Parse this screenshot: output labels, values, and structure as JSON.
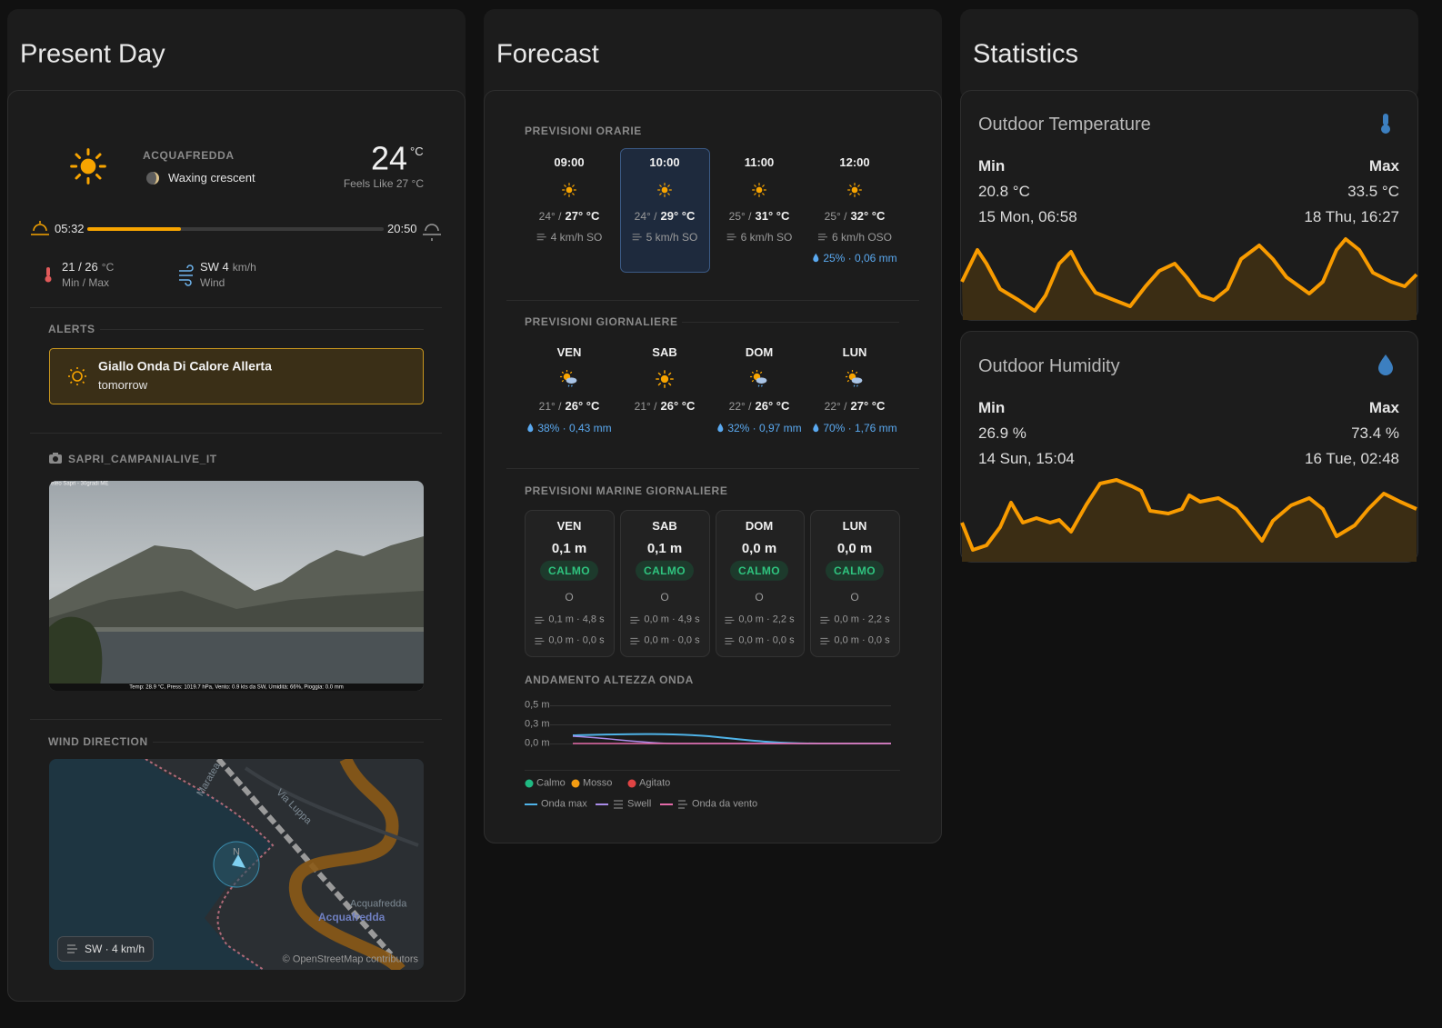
{
  "present_day": {
    "title": "Present Day",
    "location": "ACQUAFREDDA",
    "moon_phase": "Waxing crescent",
    "temperature": "24",
    "temperature_unit": "°C",
    "feels_like": "Feels Like 27 °C",
    "sunrise": "05:32",
    "sunset": "20:50",
    "min_max": {
      "value": "21 / 26",
      "unit": "°C",
      "label": "Min / Max"
    },
    "wind": {
      "value": "SW 4",
      "unit": "km/h",
      "label": "Wind"
    },
    "alerts": {
      "heading": "ALERTS",
      "title": "Giallo Onda Di Calore Allerta",
      "when": "tomorrow"
    },
    "camera": {
      "heading": "SAPRI_CAMPANIALIVE_IT",
      "overlay": "eteo Sapri - 30gradi ME",
      "caption": "Temp: 28.9 °C, Press: 1019.7 hPa, Vento: 0.9 kts da SW, Umidità: 66%, Pioggia: 0.0 mm"
    },
    "wind_map": {
      "heading": "WIND DIRECTION",
      "compass": "N",
      "badge": "SW · 4 km/h",
      "credit": "© OpenStreetMap contributors",
      "labels": [
        "Maratea",
        "Via Luppa",
        "Acquafredda",
        "Acquafredda"
      ]
    }
  },
  "forecast": {
    "title": "Forecast",
    "hourly": {
      "heading": "PREVISIONI ORARIE",
      "items": [
        {
          "time": "09:00",
          "low": "24° /",
          "high": "27° °C",
          "wind": "4 km/h SO"
        },
        {
          "time": "10:00",
          "low": "24° /",
          "high": "29° °C",
          "wind": "5 km/h SO"
        },
        {
          "time": "11:00",
          "low": "25° /",
          "high": "31° °C",
          "wind": "6 km/h SO"
        },
        {
          "time": "12:00",
          "low": "25° /",
          "high": "32° °C",
          "wind": "6 km/h OSO",
          "precip": "25% · 0,06 mm"
        }
      ]
    },
    "daily": {
      "heading": "PREVISIONI GIORNALIERE",
      "items": [
        {
          "day": "VEN",
          "low": "21° /",
          "high": "26° °C",
          "precip": "38% · 0,43 mm"
        },
        {
          "day": "SAB",
          "low": "21° /",
          "high": "26° °C"
        },
        {
          "day": "DOM",
          "low": "22° /",
          "high": "26° °C",
          "precip": "32% · 0,97 mm"
        },
        {
          "day": "LUN",
          "low": "22° /",
          "high": "27° °C",
          "precip": "70% · 1,76 mm"
        }
      ]
    },
    "marine": {
      "heading": "PREVISIONI MARINE GIORNALIERE",
      "items": [
        {
          "day": "VEN",
          "height": "0,1 m",
          "state": "CALMO",
          "direction": "O",
          "swell": "0,1 m · 4,8 s",
          "wind_wave": "0,0 m · 0,0 s"
        },
        {
          "day": "SAB",
          "height": "0,1 m",
          "state": "CALMO",
          "direction": "O",
          "swell": "0,0 m · 4,9 s",
          "wind_wave": "0,0 m · 0,0 s"
        },
        {
          "day": "DOM",
          "height": "0,0 m",
          "state": "CALMO",
          "direction": "O",
          "swell": "0,0 m · 2,2 s",
          "wind_wave": "0,0 m · 0,0 s"
        },
        {
          "day": "LUN",
          "height": "0,0 m",
          "state": "CALMO",
          "direction": "O",
          "swell": "0,0 m · 2,2 s",
          "wind_wave": "0,0 m · 0,0 s"
        }
      ]
    },
    "wave_chart": {
      "title": "ANDAMENTO ALTEZZA ONDA",
      "y_labels": [
        "0,5 m",
        "0,3 m",
        "0,0 m"
      ],
      "legend": [
        "Calmo",
        "Mosso",
        "Agitato",
        "Onda max",
        "Swell",
        "Onda da vento"
      ]
    }
  },
  "statistics": {
    "title": "Statistics",
    "cards": [
      {
        "title": "Outdoor Temperature",
        "min_label": "Min",
        "max_label": "Max",
        "min": "20.8 °C",
        "max": "33.5 °C",
        "min_time": "15 Mon, 06:58",
        "max_time": "18 Thu, 16:27"
      },
      {
        "title": "Outdoor Humidity",
        "min_label": "Min",
        "max_label": "Max",
        "min": "26.9 %",
        "max": "73.4 %",
        "min_time": "14 Sun, 15:04",
        "max_time": "16 Tue, 02:48"
      }
    ]
  }
}
